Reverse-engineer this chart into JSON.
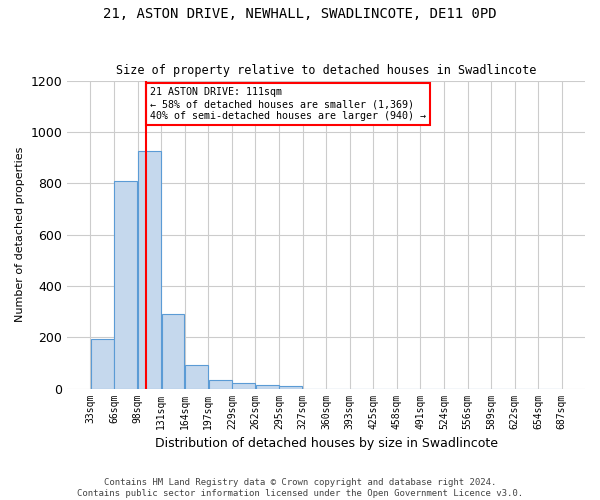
{
  "title1": "21, ASTON DRIVE, NEWHALL, SWADLINCOTE, DE11 0PD",
  "title2": "Size of property relative to detached houses in Swadlincote",
  "xlabel": "Distribution of detached houses by size in Swadlincote",
  "ylabel": "Number of detached properties",
  "annotation_line1": "21 ASTON DRIVE: 111sqm",
  "annotation_line2": "← 58% of detached houses are smaller (1,369)",
  "annotation_line3": "40% of semi-detached houses are larger (940) →",
  "footer1": "Contains HM Land Registry data © Crown copyright and database right 2024.",
  "footer2": "Contains public sector information licensed under the Open Government Licence v3.0.",
  "bar_color": "#c5d8ed",
  "bar_edge_color": "#5b9bd5",
  "vline_color": "red",
  "vline_x": 111,
  "background_color": "#ffffff",
  "grid_color": "#cccccc",
  "bins": [
    33,
    66,
    99,
    132,
    165,
    198,
    231,
    264,
    297,
    330,
    363,
    396,
    429,
    462,
    495,
    528,
    561,
    594,
    627,
    660,
    693
  ],
  "bin_labels": [
    "33sqm",
    "66sqm",
    "98sqm",
    "131sqm",
    "164sqm",
    "197sqm",
    "229sqm",
    "262sqm",
    "295sqm",
    "327sqm",
    "360sqm",
    "393sqm",
    "425sqm",
    "458sqm",
    "491sqm",
    "524sqm",
    "556sqm",
    "589sqm",
    "622sqm",
    "654sqm",
    "687sqm"
  ],
  "bar_heights": [
    195,
    810,
    925,
    290,
    90,
    35,
    20,
    15,
    10,
    0,
    0,
    0,
    0,
    0,
    0,
    0,
    0,
    0,
    0,
    0
  ],
  "ylim": [
    0,
    1200
  ],
  "yticks": [
    0,
    200,
    400,
    600,
    800,
    1000,
    1200
  ]
}
